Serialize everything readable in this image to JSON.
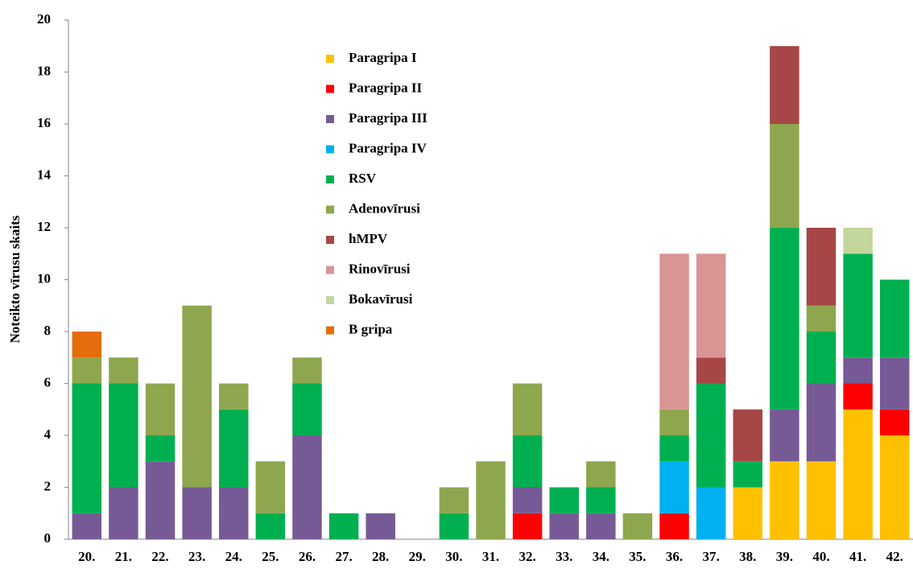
{
  "chart_data": {
    "type": "stacked_bar",
    "y_label": "Noteikto vīrusu skaits",
    "categories": [
      "20.",
      "21.",
      "22.",
      "23.",
      "24.",
      "25.",
      "26.",
      "27.",
      "28.",
      "29.",
      "30.",
      "31.",
      "32.",
      "33.",
      "34.",
      "35.",
      "36.",
      "37.",
      "38.",
      "39.",
      "40.",
      "41.",
      "42."
    ],
    "series": [
      {
        "name": "Paragripa I",
        "color": "#ffc000",
        "values": [
          0,
          0,
          0,
          0,
          0,
          0,
          0,
          0,
          0,
          0,
          0,
          0,
          0,
          0,
          0,
          0,
          0,
          0,
          2,
          3,
          3,
          5,
          4
        ]
      },
      {
        "name": "Paragripa II",
        "color": "#ff0000",
        "values": [
          0,
          0,
          0,
          0,
          0,
          0,
          0,
          0,
          0,
          0,
          0,
          0,
          1,
          0,
          0,
          0,
          1,
          0,
          0,
          0,
          0,
          1,
          1
        ]
      },
      {
        "name": "Paragripa III",
        "color": "#765a96",
        "values": [
          1,
          2,
          3,
          2,
          2,
          0,
          4,
          0,
          1,
          0,
          0,
          0,
          1,
          1,
          1,
          0,
          0,
          0,
          0,
          2,
          3,
          1,
          2
        ]
      },
      {
        "name": "Paragripa IV",
        "color": "#00b0f0",
        "values": [
          0,
          0,
          0,
          0,
          0,
          0,
          0,
          0,
          0,
          0,
          0,
          0,
          0,
          0,
          0,
          0,
          2,
          2,
          0,
          0,
          0,
          0,
          0
        ]
      },
      {
        "name": "RSV",
        "color": "#00b050",
        "values": [
          5,
          4,
          1,
          0,
          3,
          1,
          2,
          1,
          0,
          0,
          1,
          0,
          2,
          1,
          1,
          0,
          1,
          4,
          1,
          7,
          2,
          4,
          3
        ]
      },
      {
        "name": "Adenovīrusi",
        "color": "#8ea64e",
        "values": [
          1,
          1,
          2,
          7,
          1,
          2,
          1,
          0,
          0,
          0,
          1,
          3,
          2,
          0,
          1,
          1,
          1,
          0,
          0,
          4,
          1,
          0,
          0
        ]
      },
      {
        "name": "hMPV",
        "color": "#a64646",
        "values": [
          0,
          0,
          0,
          0,
          0,
          0,
          0,
          0,
          0,
          0,
          0,
          0,
          0,
          0,
          0,
          0,
          0,
          1,
          2,
          3,
          3,
          0,
          0
        ]
      },
      {
        "name": "Rinovīrusi",
        "color": "#d99594",
        "values": [
          0,
          0,
          0,
          0,
          0,
          0,
          0,
          0,
          0,
          0,
          0,
          0,
          0,
          0,
          0,
          0,
          6,
          4,
          0,
          0,
          0,
          0,
          0
        ]
      },
      {
        "name": "Bokavīrusi",
        "color": "#c3d69b",
        "values": [
          0,
          0,
          0,
          0,
          0,
          0,
          0,
          0,
          0,
          0,
          0,
          0,
          0,
          0,
          0,
          0,
          0,
          0,
          0,
          0,
          0,
          1,
          0
        ]
      },
      {
        "name": "B gripa",
        "color": "#e46c0a",
        "values": [
          1,
          0,
          0,
          0,
          0,
          0,
          0,
          0,
          0,
          0,
          0,
          0,
          0,
          0,
          0,
          0,
          0,
          0,
          0,
          0,
          0,
          0,
          0
        ]
      }
    ],
    "ylim": [
      0,
      20
    ],
    "yticks": [
      0,
      2,
      4,
      6,
      8,
      10,
      12,
      14,
      16,
      18,
      20
    ],
    "grid": false,
    "legend": "top-center"
  }
}
